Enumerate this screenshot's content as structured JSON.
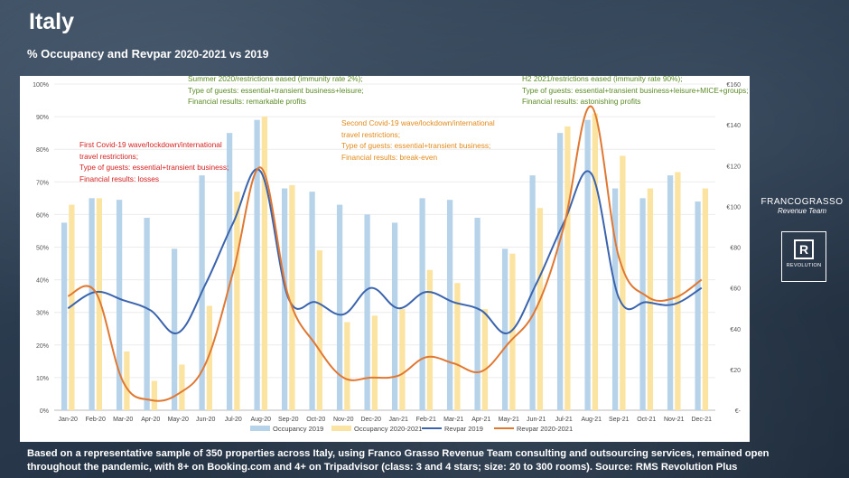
{
  "header": {
    "title": "Italy",
    "subtitle_main": "% Occupancy and Revpar",
    "subtitle_years": "2020-2021 vs 2019"
  },
  "annotations": {
    "first_wave": [
      "First Covid-19 wave/lockdown/international",
      "travel restrictions;",
      "Type of guests: essential+transient business;",
      "Financial results: losses"
    ],
    "summer_2020": [
      "Summer 2020/restrictions eased (immunity rate 2%);",
      "Type of guests: essential+transient business+leisure;",
      "Financial results: remarkable profits"
    ],
    "second_wave": [
      "Second Covid-19 wave/lockdown/international",
      "travel restrictions;",
      "Type of guests: essential+transient business;",
      "Financial results: break-even"
    ],
    "h2_2021": [
      "H2 2021/restrictions eased (immunity rate 90%);",
      "Type of guests: essential+transient business+leisure+MICE+groups;",
      "Financial results: astonishing profits"
    ]
  },
  "footer": {
    "line1": "Based on a representative sample of 350 properties across Italy, using Franco Grasso Revenue Team consulting and outsourcing services, remained open",
    "line2": "throughout the pandemic, with 8+ on Booking.com and 4+ on Tripadvisor (class: 3 and 4 stars; size: 20 to 300 rooms). Source: RMS Revolution Plus"
  },
  "logos": {
    "franco_grasso": "FRANCOGRASSO",
    "franco_grasso_sub": "Revenue Team",
    "revolution_letter": "R",
    "revolution_name": "REVOLUTION"
  },
  "colors": {
    "occ2019": "#b7d3ea",
    "occ2021": "#fbe3a1",
    "rev2019": "#3b64ad",
    "rev2021": "#e07832",
    "green_note": "#5a8a24",
    "red_note": "#d42020",
    "orange_note": "#e08a1a"
  },
  "chart_data": {
    "type": "bar+line",
    "categories": [
      "Jan-20",
      "Feb-20",
      "Mar-20",
      "Apr-20",
      "May-20",
      "Jun-20",
      "Jul-20",
      "Aug-20",
      "Sep-20",
      "Oct-20",
      "Nov-20",
      "Dec-20",
      "Jan-21",
      "Feb-21",
      "Mar-21",
      "Apr-21",
      "May-21",
      "Jun-21",
      "Jul-21",
      "Aug-21",
      "Sep-21",
      "Oct-21",
      "Nov-21",
      "Dec-21"
    ],
    "y_left": {
      "min": 0,
      "max": 100,
      "ticks": [
        0,
        10,
        20,
        30,
        40,
        50,
        60,
        70,
        80,
        90,
        100
      ],
      "tick_labels": [
        "0%",
        "10%",
        "20%",
        "30%",
        "40%",
        "50%",
        "60%",
        "70%",
        "80%",
        "90%",
        "100%"
      ]
    },
    "y_right": {
      "min": 0,
      "max": 160,
      "ticks": [
        0,
        20,
        40,
        60,
        80,
        100,
        120,
        140,
        160
      ],
      "tick_labels": [
        "€-",
        "€20",
        "€40",
        "€60",
        "€80",
        "€100",
        "€120",
        "€140",
        "€160"
      ]
    },
    "bars": [
      {
        "name": "Occupancy 2019",
        "axis": "left",
        "values": [
          57.5,
          65,
          64.5,
          59,
          49.5,
          72,
          85,
          89,
          68,
          67,
          63,
          60,
          57.5,
          65,
          64.5,
          59,
          49.5,
          72,
          85,
          89,
          68,
          65,
          72,
          64
        ]
      },
      {
        "name": "Occupancy 2020-2021",
        "axis": "left",
        "values": [
          63,
          65,
          18,
          9,
          14,
          32,
          67,
          90,
          69,
          49,
          27,
          29,
          31,
          43,
          39,
          31,
          48,
          62,
          87,
          91,
          78,
          68,
          73,
          68
        ]
      }
    ],
    "lines": [
      {
        "name": "Revpar 2019",
        "axis": "right",
        "values": [
          50,
          58,
          54,
          49,
          38,
          62,
          92,
          117,
          55,
          53,
          47,
          60,
          50,
          58,
          53,
          49,
          38,
          62,
          92,
          116,
          55,
          53,
          52,
          60
        ]
      },
      {
        "name": "Revpar 2020-2021",
        "axis": "right",
        "values": [
          56,
          58,
          14,
          5,
          8,
          23,
          68,
          119,
          56,
          32,
          16,
          16,
          17,
          26,
          23,
          19,
          33,
          50,
          90,
          149,
          75,
          56,
          55,
          64
        ]
      }
    ],
    "legend_position": "bottom"
  }
}
